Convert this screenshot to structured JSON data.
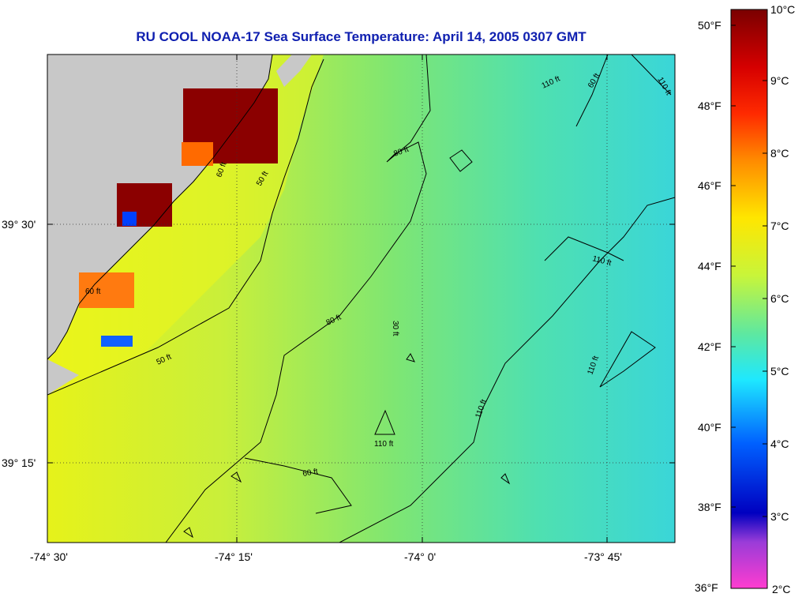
{
  "title": "RU COOL  NOAA-17  Sea Surface Temperature:  April 14, 2005 0307 GMT",
  "map": {
    "lon_labels": [
      "-74° 30'",
      "-74° 15'",
      "-74° 0'",
      "-73° 45'"
    ],
    "lat_labels": [
      "39° 30'",
      "39° 15'"
    ],
    "contour_labels": [
      "50 ft",
      "50 ft",
      "60 ft",
      "60 ft",
      "60 ft",
      "80 ft",
      "80 ft",
      "110 ft",
      "110 ft",
      "110 ft",
      "110 ft",
      "110 ft",
      "110 ft",
      "60 ft",
      "30 ft"
    ],
    "land_color": "#c8c8c8"
  },
  "colorbar": {
    "celsius_labels": [
      "10°C",
      "9°C",
      "8°C",
      "7°C",
      "6°C",
      "5°C",
      "4°C",
      "3°C",
      "2°C"
    ],
    "fahrenheit_labels": [
      "50°F",
      "48°F",
      "46°F",
      "44°F",
      "42°F",
      "40°F",
      "38°F",
      "36°F"
    ]
  }
}
